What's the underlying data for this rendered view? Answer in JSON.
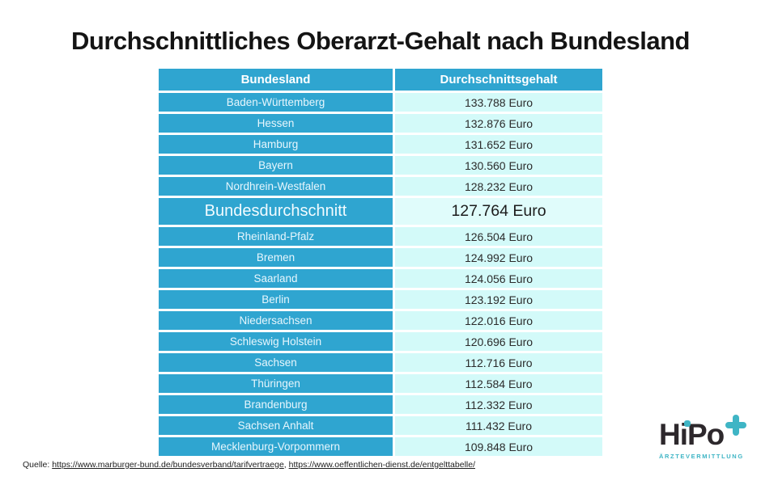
{
  "title": "Durchschnittliches Oberarzt-Gehalt nach Bundesland",
  "chart_data": {
    "type": "table",
    "title": "Durchschnittliches Oberarzt-Gehalt nach Bundesland",
    "columns": [
      "Bundesland",
      "Durchschnittsgehalt"
    ],
    "rows": [
      {
        "state": "Baden-Württemberg",
        "salary_label": "133.788 Euro",
        "salary_eur": 133788,
        "highlight": false
      },
      {
        "state": "Hessen",
        "salary_label": "132.876 Euro",
        "salary_eur": 132876,
        "highlight": false
      },
      {
        "state": "Hamburg",
        "salary_label": "131.652 Euro",
        "salary_eur": 131652,
        "highlight": false
      },
      {
        "state": "Bayern",
        "salary_label": "130.560 Euro",
        "salary_eur": 130560,
        "highlight": false
      },
      {
        "state": "Nordhrein-Westfalen",
        "salary_label": "128.232 Euro",
        "salary_eur": 128232,
        "highlight": false
      },
      {
        "state": "Bundesdurchschnitt",
        "salary_label": "127.764 Euro",
        "salary_eur": 127764,
        "highlight": true
      },
      {
        "state": "Rheinland-Pfalz",
        "salary_label": "126.504 Euro",
        "salary_eur": 126504,
        "highlight": false
      },
      {
        "state": "Bremen",
        "salary_label": "124.992 Euro",
        "salary_eur": 124992,
        "highlight": false
      },
      {
        "state": "Saarland",
        "salary_label": "124.056 Euro",
        "salary_eur": 124056,
        "highlight": false
      },
      {
        "state": "Berlin",
        "salary_label": "123.192 Euro",
        "salary_eur": 123192,
        "highlight": false
      },
      {
        "state": "Niedersachsen",
        "salary_label": "122.016 Euro",
        "salary_eur": 122016,
        "highlight": false
      },
      {
        "state": "Schleswig Holstein",
        "salary_label": "120.696 Euro",
        "salary_eur": 120696,
        "highlight": false
      },
      {
        "state": "Sachsen",
        "salary_label": "112.716 Euro",
        "salary_eur": 112716,
        "highlight": false
      },
      {
        "state": "Thüringen",
        "salary_label": "112.584 Euro",
        "salary_eur": 112584,
        "highlight": false
      },
      {
        "state": "Brandenburg",
        "salary_label": "112.332 Euro",
        "salary_eur": 112332,
        "highlight": false
      },
      {
        "state": "Sachsen Anhalt",
        "salary_label": "111.432 Euro",
        "salary_eur": 111432,
        "highlight": false
      },
      {
        "state": "Mecklenburg-Vorpommern",
        "salary_label": "109.848 Euro",
        "salary_eur": 109848,
        "highlight": false
      }
    ]
  },
  "footer": {
    "source_label": "Quelle:",
    "link1": "https://www.marburger-bund.de/bundesverband/tarifvertraege",
    "separator": ", ",
    "link2": "https://www.oeffentlichen-dienst.de/entgelttabelle/"
  },
  "logo": {
    "word": "HiPo",
    "tagline": "ÄRZTEVERMITTLUNG"
  },
  "colors": {
    "table_blue": "#2fa5d0",
    "cell_light_cyan": "#d3faf9",
    "highlight_cell_cyan": "#e0fcfb",
    "logo_dark": "#2d282c",
    "logo_teal": "#3fb5c5",
    "title_text": "#141414"
  }
}
